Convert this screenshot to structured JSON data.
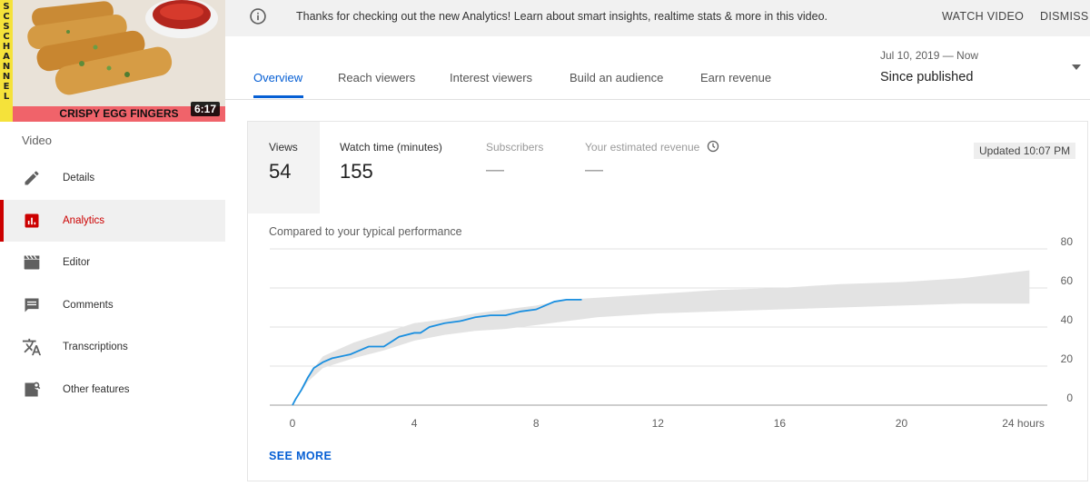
{
  "thumbnail": {
    "channel_strip": [
      "S",
      "C",
      "S",
      " ",
      "C",
      "H",
      "A",
      "N",
      "N",
      "E",
      "L"
    ],
    "caption": "CRISPY EGG FINGERS",
    "duration": "6:17"
  },
  "sidebar": {
    "heading": "Video",
    "items": [
      {
        "label": "Details",
        "icon": "pencil-icon"
      },
      {
        "label": "Analytics",
        "icon": "analytics-icon",
        "active": true
      },
      {
        "label": "Editor",
        "icon": "clapperboard-icon"
      },
      {
        "label": "Comments",
        "icon": "comment-icon"
      },
      {
        "label": "Transcriptions",
        "icon": "translate-icon"
      },
      {
        "label": "Other features",
        "icon": "other-features-icon"
      }
    ]
  },
  "banner": {
    "text": "Thanks for checking out the new Analytics! Learn about smart insights, realtime stats & more in this video.",
    "watch_label": "WATCH VIDEO",
    "dismiss_label": "DISMISS"
  },
  "tabs": [
    {
      "label": "Overview",
      "active": true
    },
    {
      "label": "Reach viewers"
    },
    {
      "label": "Interest viewers"
    },
    {
      "label": "Build an audience"
    },
    {
      "label": "Earn revenue"
    }
  ],
  "date_picker": {
    "range": "Jul 10, 2019 — Now",
    "selected": "Since published"
  },
  "metrics": {
    "views": {
      "label": "Views",
      "value": "54"
    },
    "watch_time": {
      "label": "Watch time (minutes)",
      "value": "155"
    },
    "subscribers": {
      "label": "Subscribers",
      "value": "—"
    },
    "revenue": {
      "label": "Your estimated revenue",
      "value": "—"
    },
    "updated": "Updated 10:07 PM"
  },
  "compare_label": "Compared to your typical performance",
  "see_more": "SEE MORE",
  "colors": {
    "accent": "#065fd4",
    "active_red": "#cc0000",
    "band": "#e3e3e3"
  },
  "chart_data": {
    "type": "area",
    "x_tick_labels": [
      "0",
      "4",
      "8",
      "12",
      "16",
      "20",
      "24 hours"
    ],
    "x_ticks": [
      0,
      4,
      8,
      12,
      16,
      20,
      24
    ],
    "y_tick_labels": [
      "0",
      "20",
      "40",
      "60",
      "80"
    ],
    "y_ticks": [
      0,
      20,
      40,
      60,
      80
    ],
    "xlim": [
      0,
      24.4
    ],
    "ylim": [
      0,
      80
    ],
    "grid": true,
    "series": [
      {
        "values_x": [
          0,
          0.1,
          0.3,
          0.5,
          0.7,
          1.0,
          1.3,
          1.6,
          1.9,
          2.2,
          2.5,
          2.8,
          3.0,
          3.2,
          3.5,
          4.0,
          4.2,
          4.5,
          5.0,
          5.5,
          6.0,
          6.5,
          7.0,
          7.5,
          8.0,
          8.3,
          8.6,
          9.0,
          9.5
        ],
        "values_y": [
          0,
          3,
          8,
          14,
          19,
          22,
          24,
          25,
          26,
          28,
          30,
          30,
          30,
          32,
          35,
          37,
          37,
          40,
          42,
          43,
          45,
          46,
          46,
          48,
          49,
          51,
          53,
          54,
          54
        ]
      }
    ],
    "typical_band": {
      "x": [
        0,
        0.5,
        1,
        2,
        3,
        4,
        5,
        6,
        7,
        8,
        9,
        10,
        11,
        12,
        14,
        16,
        18,
        20,
        22,
        24.2
      ],
      "lower": [
        0,
        12,
        19,
        24,
        28,
        33,
        36,
        38,
        39,
        41,
        43,
        45,
        46,
        47,
        48,
        49,
        50,
        51,
        52,
        52
      ],
      "upper": [
        0,
        15,
        25,
        32,
        37,
        42,
        44,
        47,
        49,
        51,
        54,
        55,
        56,
        57,
        59,
        60,
        62,
        63,
        65,
        69
      ]
    }
  }
}
